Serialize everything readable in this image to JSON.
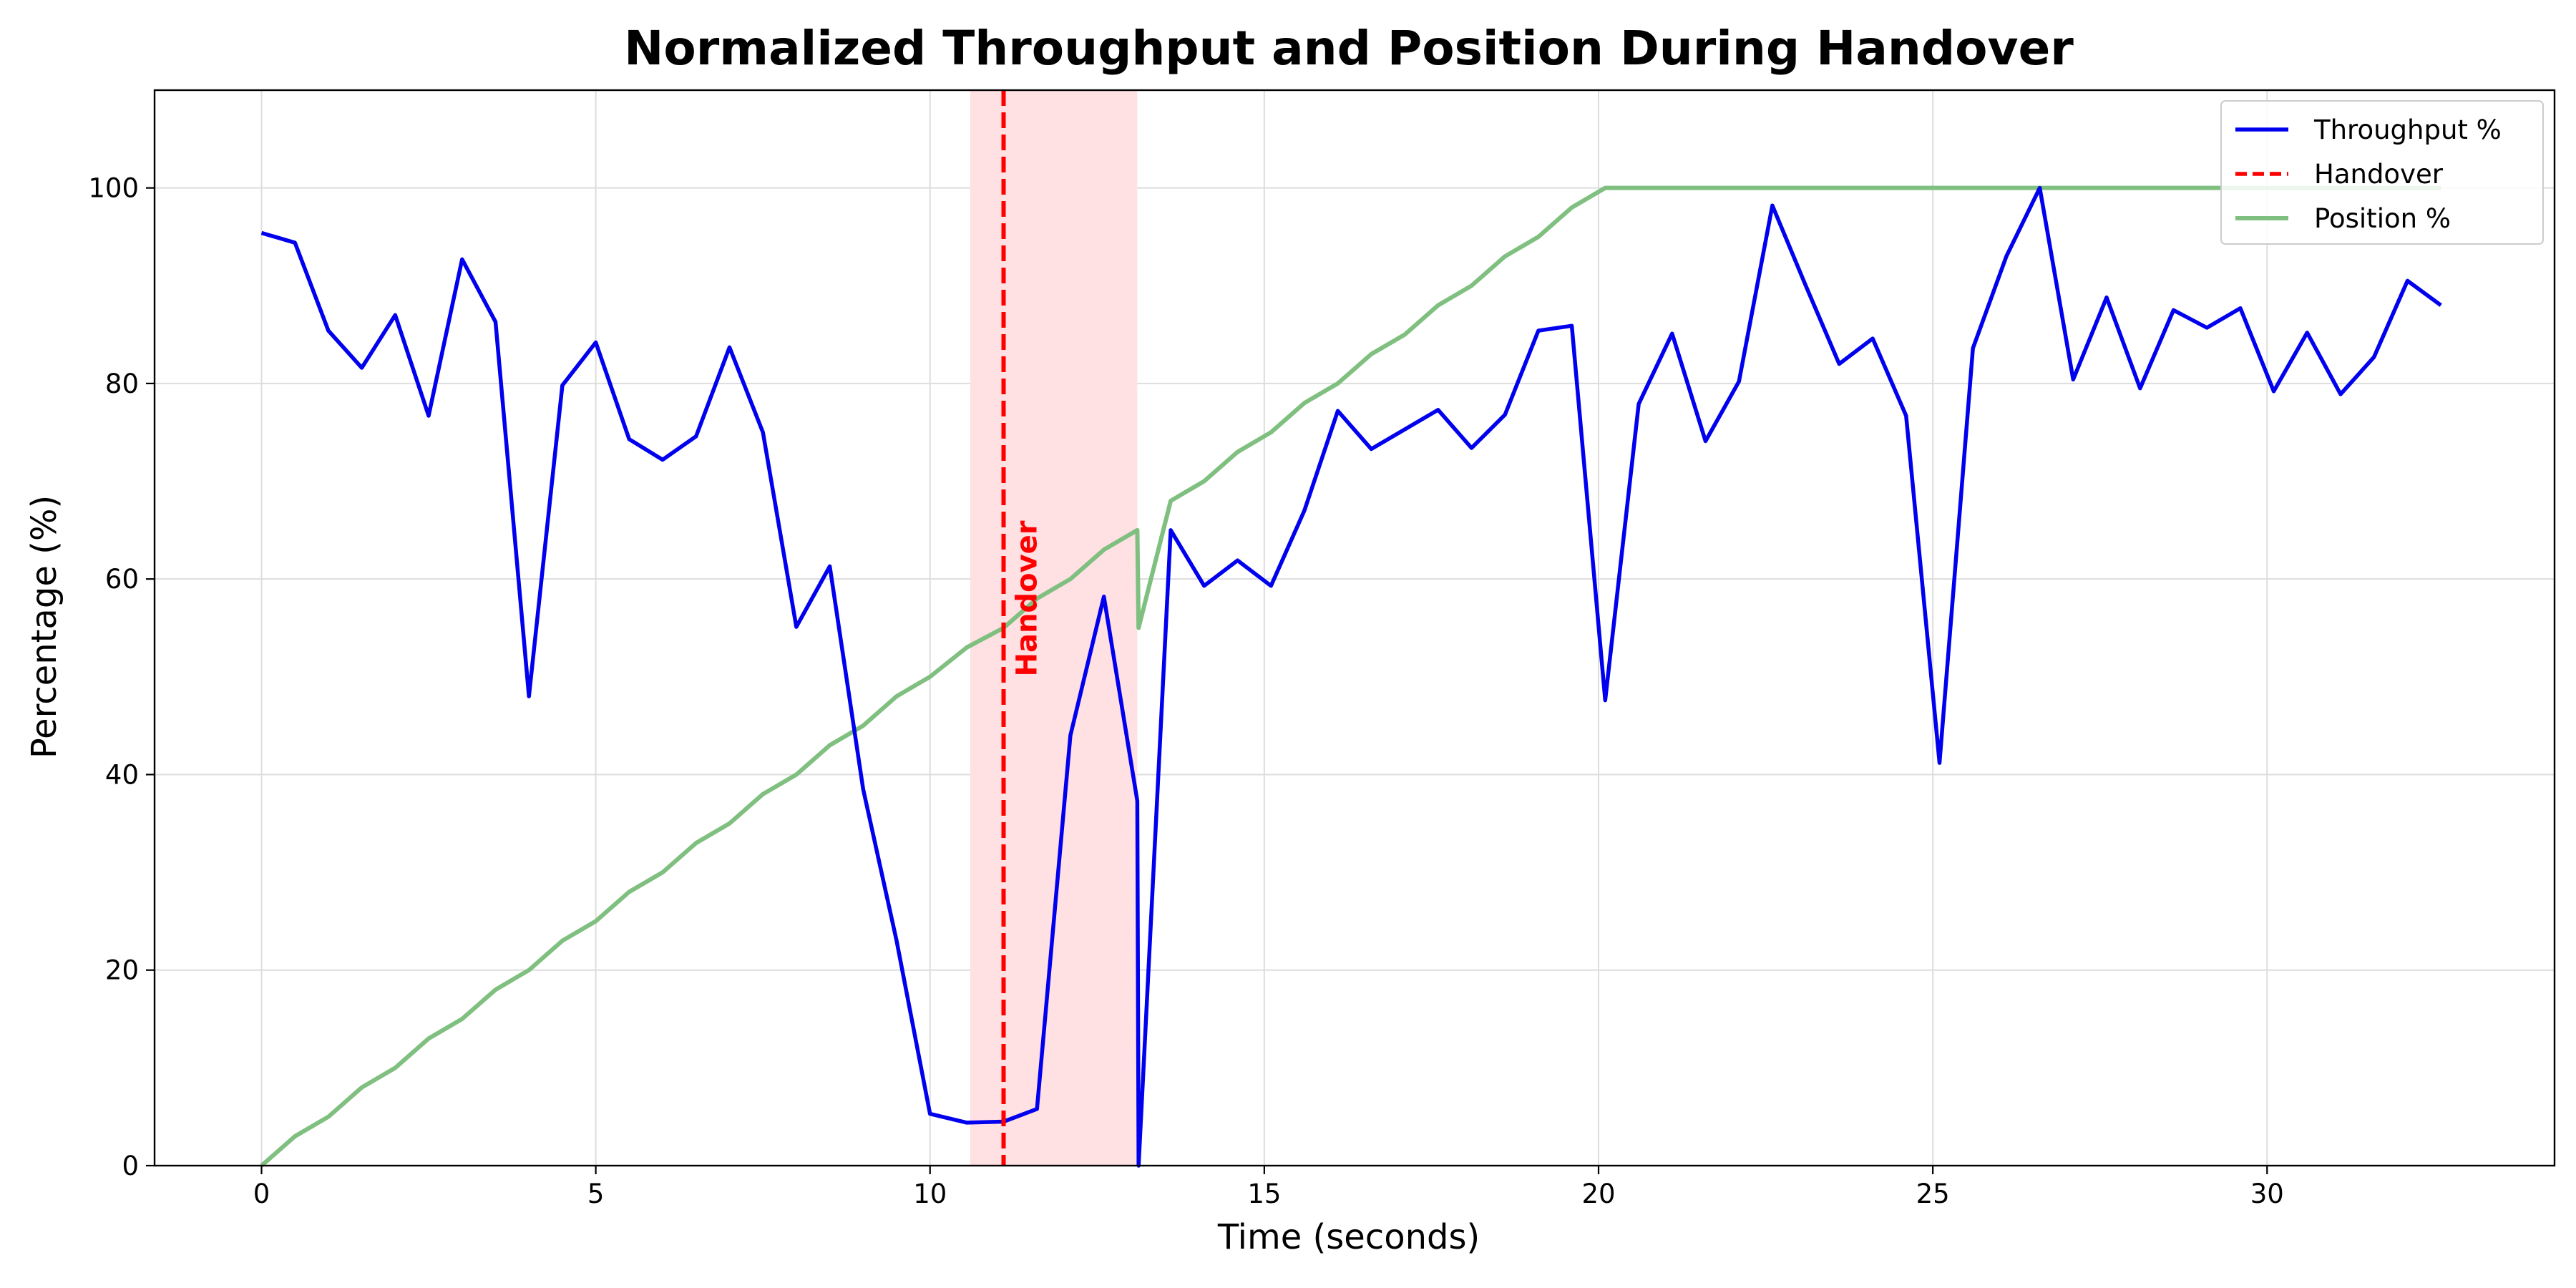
{
  "chart_data": {
    "type": "line",
    "title": "Normalized Throughput and Position During Handover",
    "xlabel": "Time (seconds)",
    "ylabel": "Percentage (%)",
    "xlim": [
      -1.6,
      34.3
    ],
    "ylim": [
      0,
      110
    ],
    "xticks": [
      0,
      5,
      10,
      15,
      20,
      25,
      30
    ],
    "yticks": [
      0,
      20,
      40,
      60,
      80,
      100
    ],
    "grid": true,
    "legend_position": "top-right",
    "handover_region": [
      10.6,
      13.1
    ],
    "handover_time": 11.1,
    "handover_annotation": "Handover",
    "handover_color": "#ff0000",
    "region_color": "#ffe0e3",
    "series": [
      {
        "name": "Throughput %",
        "color": "#0000ee",
        "style": "solid",
        "x": [
          0,
          0.5,
          1.0,
          1.5,
          2.0,
          2.5,
          3.0,
          3.5,
          4.0,
          4.5,
          5.0,
          5.5,
          6.0,
          6.5,
          7.0,
          7.5,
          8.0,
          8.5,
          9.0,
          9.5,
          10.0,
          10.55,
          11.1,
          11.6,
          12.1,
          12.6,
          13.1,
          13.12,
          13.6,
          14.1,
          14.6,
          15.1,
          15.6,
          16.1,
          16.6,
          17.1,
          17.6,
          18.1,
          18.6,
          19.1,
          19.6,
          20.1,
          20.6,
          21.1,
          21.6,
          22.1,
          22.6,
          23.1,
          23.6,
          24.1,
          24.6,
          25.1,
          25.6,
          26.1,
          26.6,
          27.1,
          27.6,
          28.1,
          28.6,
          29.1,
          29.6,
          30.1,
          30.6,
          31.1,
          31.6,
          32.1,
          32.6
        ],
        "values": [
          95.4,
          94.4,
          85.4,
          81.6,
          87.0,
          76.7,
          92.7,
          86.3,
          48.0,
          79.8,
          84.2,
          74.3,
          72.2,
          74.6,
          83.7,
          75.0,
          55.1,
          61.3,
          38.5,
          23.0,
          5.3,
          4.4,
          4.5,
          5.8,
          44.0,
          58.2,
          37.3,
          0.0,
          65.0,
          59.3,
          61.9,
          59.3,
          67.0,
          77.2,
          73.3,
          75.3,
          77.3,
          73.4,
          76.8,
          85.4,
          85.9,
          47.6,
          77.9,
          85.1,
          74.1,
          80.2,
          98.2,
          90.0,
          82.0,
          84.6,
          76.7,
          41.2,
          83.6,
          93.0,
          100.0,
          80.4,
          88.8,
          79.5,
          87.5,
          85.7,
          87.7,
          79.2,
          85.2,
          78.9,
          82.7,
          90.5,
          88.0
        ]
      },
      {
        "name": "Handover",
        "color": "#ff0000",
        "style": "dashed"
      },
      {
        "name": "Position %",
        "color": "#7fbf7f",
        "style": "solid",
        "x": [
          0,
          0.5,
          1.0,
          1.5,
          2.0,
          2.5,
          3.0,
          3.5,
          4.0,
          4.5,
          5.0,
          5.5,
          6.0,
          6.5,
          7.0,
          7.5,
          8.0,
          8.5,
          9.0,
          9.5,
          10.0,
          10.55,
          11.1,
          11.6,
          12.1,
          12.6,
          13.1,
          13.12,
          13.6,
          14.1,
          14.6,
          15.1,
          15.6,
          16.1,
          16.6,
          17.1,
          17.6,
          18.1,
          18.6,
          19.1,
          19.6,
          20.1,
          32.6
        ],
        "values": [
          0,
          3,
          5,
          8,
          10,
          13,
          15,
          18,
          20,
          23,
          25,
          28,
          30,
          33,
          35,
          38,
          40,
          43,
          45,
          48,
          50,
          53,
          55,
          58,
          60,
          63,
          65,
          55,
          68,
          70,
          73,
          75,
          78,
          80,
          83,
          85,
          88,
          90,
          93,
          95,
          98,
          100,
          100
        ]
      }
    ]
  }
}
